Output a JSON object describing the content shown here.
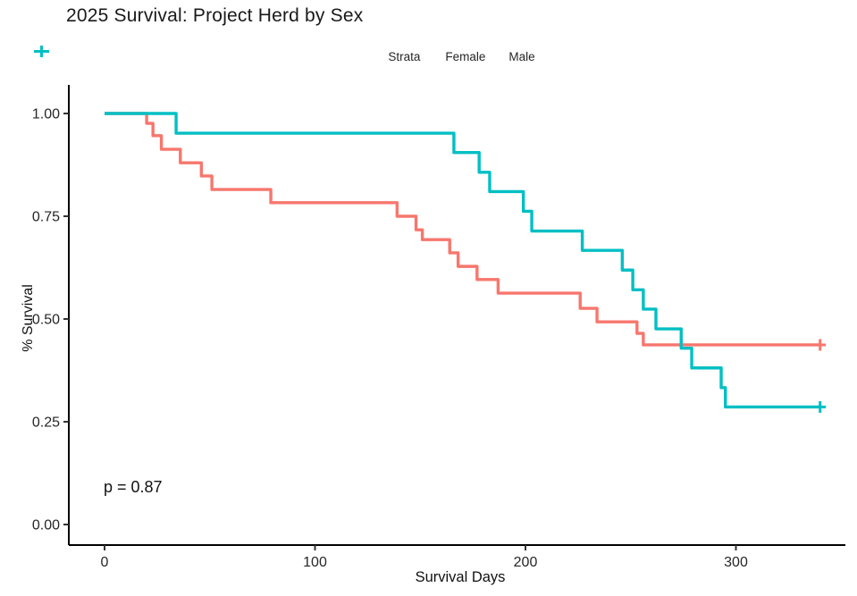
{
  "title": "2025 Survival: Project Herd by Sex",
  "legend": {
    "title": "Strata",
    "items": [
      {
        "label": "Female",
        "color": "#F8766D"
      },
      {
        "label": "Male",
        "color": "#00BFC4"
      }
    ]
  },
  "annotation": {
    "p_label": "p = 0.87"
  },
  "axes": {
    "x": {
      "label": "Survival Days",
      "ticks": [
        0,
        100,
        200,
        300
      ]
    },
    "y": {
      "label": "% Survival",
      "ticks": [
        {
          "value": 0.0,
          "label": "0.00"
        },
        {
          "value": 0.25,
          "label": "0.25"
        },
        {
          "value": 0.5,
          "label": "0.50"
        },
        {
          "value": 0.75,
          "label": "0.75"
        },
        {
          "value": 1.0,
          "label": "1.00"
        }
      ]
    }
  },
  "chart_data": {
    "type": "line",
    "subtype": "kaplan-meier-step",
    "title": "2025 Survival: Project Herd by Sex",
    "xlabel": "Survival Days",
    "ylabel": "% Survival",
    "xlim": [
      0,
      350
    ],
    "ylim": [
      0,
      1.0
    ],
    "grid": false,
    "legend_position": "top",
    "legend_title": "Strata",
    "p_value_text": "p = 0.87",
    "series": [
      {
        "name": "Female",
        "color": "#F8766D",
        "censor_marker": "plus",
        "censored_at": {
          "day": 340,
          "survival": 0.437
        },
        "points": [
          [
            0,
            1.0
          ],
          [
            20,
            0.976
          ],
          [
            23,
            0.946
          ],
          [
            27,
            0.913
          ],
          [
            36,
            0.88
          ],
          [
            46,
            0.848
          ],
          [
            51,
            0.815
          ],
          [
            79,
            0.783
          ],
          [
            139,
            0.75
          ],
          [
            148,
            0.717
          ],
          [
            151,
            0.693
          ],
          [
            164,
            0.661
          ],
          [
            168,
            0.628
          ],
          [
            177,
            0.596
          ],
          [
            187,
            0.563
          ],
          [
            226,
            0.526
          ],
          [
            234,
            0.493
          ],
          [
            253,
            0.465
          ],
          [
            256,
            0.437
          ]
        ]
      },
      {
        "name": "Male",
        "color": "#00BFC4",
        "censor_marker": "plus",
        "censored_at": {
          "day": 340,
          "survival": 0.286
        },
        "points": [
          [
            0,
            1.0
          ],
          [
            34,
            0.952
          ],
          [
            166,
            0.905
          ],
          [
            178,
            0.857
          ],
          [
            183,
            0.81
          ],
          [
            199,
            0.762
          ],
          [
            203,
            0.714
          ],
          [
            227,
            0.667
          ],
          [
            246,
            0.619
          ],
          [
            251,
            0.571
          ],
          [
            256,
            0.524
          ],
          [
            262,
            0.476
          ],
          [
            274,
            0.429
          ],
          [
            279,
            0.381
          ],
          [
            293,
            0.333
          ],
          [
            295,
            0.286
          ]
        ]
      }
    ]
  }
}
